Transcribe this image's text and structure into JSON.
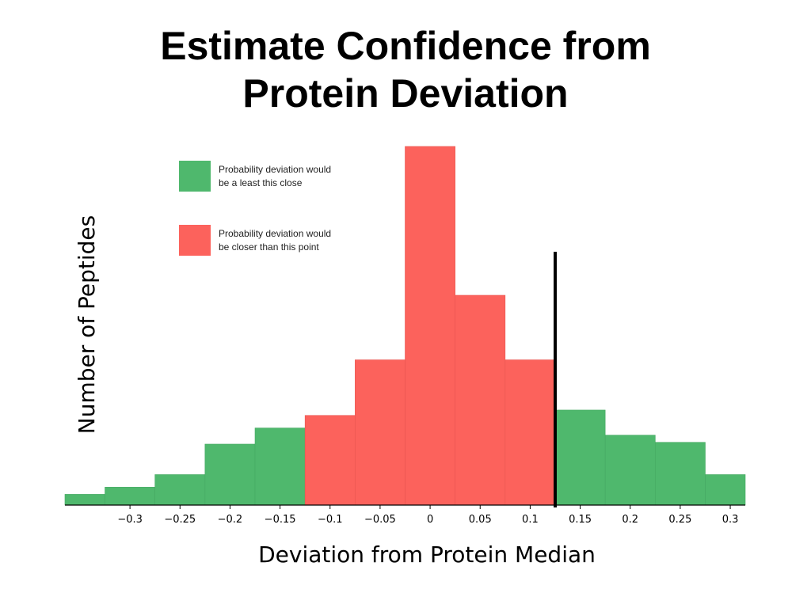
{
  "slide": {
    "title_line1": "Estimate Confidence from",
    "title_line2": "Protein Deviation"
  },
  "chart_data": {
    "type": "bar",
    "xlabel": "Deviation from Protein Median",
    "ylabel": "Number of Peptides",
    "xlim": [
      -0.365,
      0.315
    ],
    "ylim": [
      0,
      100
    ],
    "x_ticks": [
      -0.3,
      -0.25,
      -0.2,
      -0.15,
      -0.1,
      -0.05,
      0,
      0.05,
      0.1,
      0.15,
      0.2,
      0.25,
      0.3
    ],
    "x_tick_labels": [
      "−0.3",
      "−0.25",
      "−0.2",
      "−0.15",
      "−0.1",
      "−0.05",
      "0",
      "0.05",
      "0.1",
      "0.15",
      "0.2",
      "0.25",
      "0.3"
    ],
    "threshold": 0.125,
    "colors": {
      "green": "#4fb86d",
      "red": "#fc625c",
      "threshold_line": "#000000"
    },
    "bins": [
      {
        "x0": -0.365,
        "x1": -0.325,
        "value": 3,
        "color": "green"
      },
      {
        "x0": -0.325,
        "x1": -0.275,
        "value": 5,
        "color": "green"
      },
      {
        "x0": -0.275,
        "x1": -0.225,
        "value": 8.5,
        "color": "green"
      },
      {
        "x0": -0.225,
        "x1": -0.175,
        "value": 17,
        "color": "green"
      },
      {
        "x0": -0.175,
        "x1": -0.125,
        "value": 21.5,
        "color": "green"
      },
      {
        "x0": -0.125,
        "x1": -0.075,
        "value": 25,
        "color": "red"
      },
      {
        "x0": -0.075,
        "x1": -0.025,
        "value": 40.5,
        "color": "red"
      },
      {
        "x0": -0.025,
        "x1": 0.025,
        "value": 100,
        "color": "red"
      },
      {
        "x0": 0.025,
        "x1": 0.075,
        "value": 58.5,
        "color": "red"
      },
      {
        "x0": 0.075,
        "x1": 0.125,
        "value": 40.5,
        "color": "red"
      },
      {
        "x0": 0.125,
        "x1": 0.175,
        "value": 26.5,
        "color": "green"
      },
      {
        "x0": 0.175,
        "x1": 0.225,
        "value": 19.5,
        "color": "green"
      },
      {
        "x0": 0.225,
        "x1": 0.275,
        "value": 17.5,
        "color": "green"
      },
      {
        "x0": 0.275,
        "x1": 0.315,
        "value": 8.5,
        "color": "green"
      }
    ],
    "legend": [
      {
        "color": "green",
        "line1": "Probability deviation would",
        "line2": "be a least this close"
      },
      {
        "color": "red",
        "line1": "Probability deviation would",
        "line2": "be closer than this point"
      }
    ]
  }
}
